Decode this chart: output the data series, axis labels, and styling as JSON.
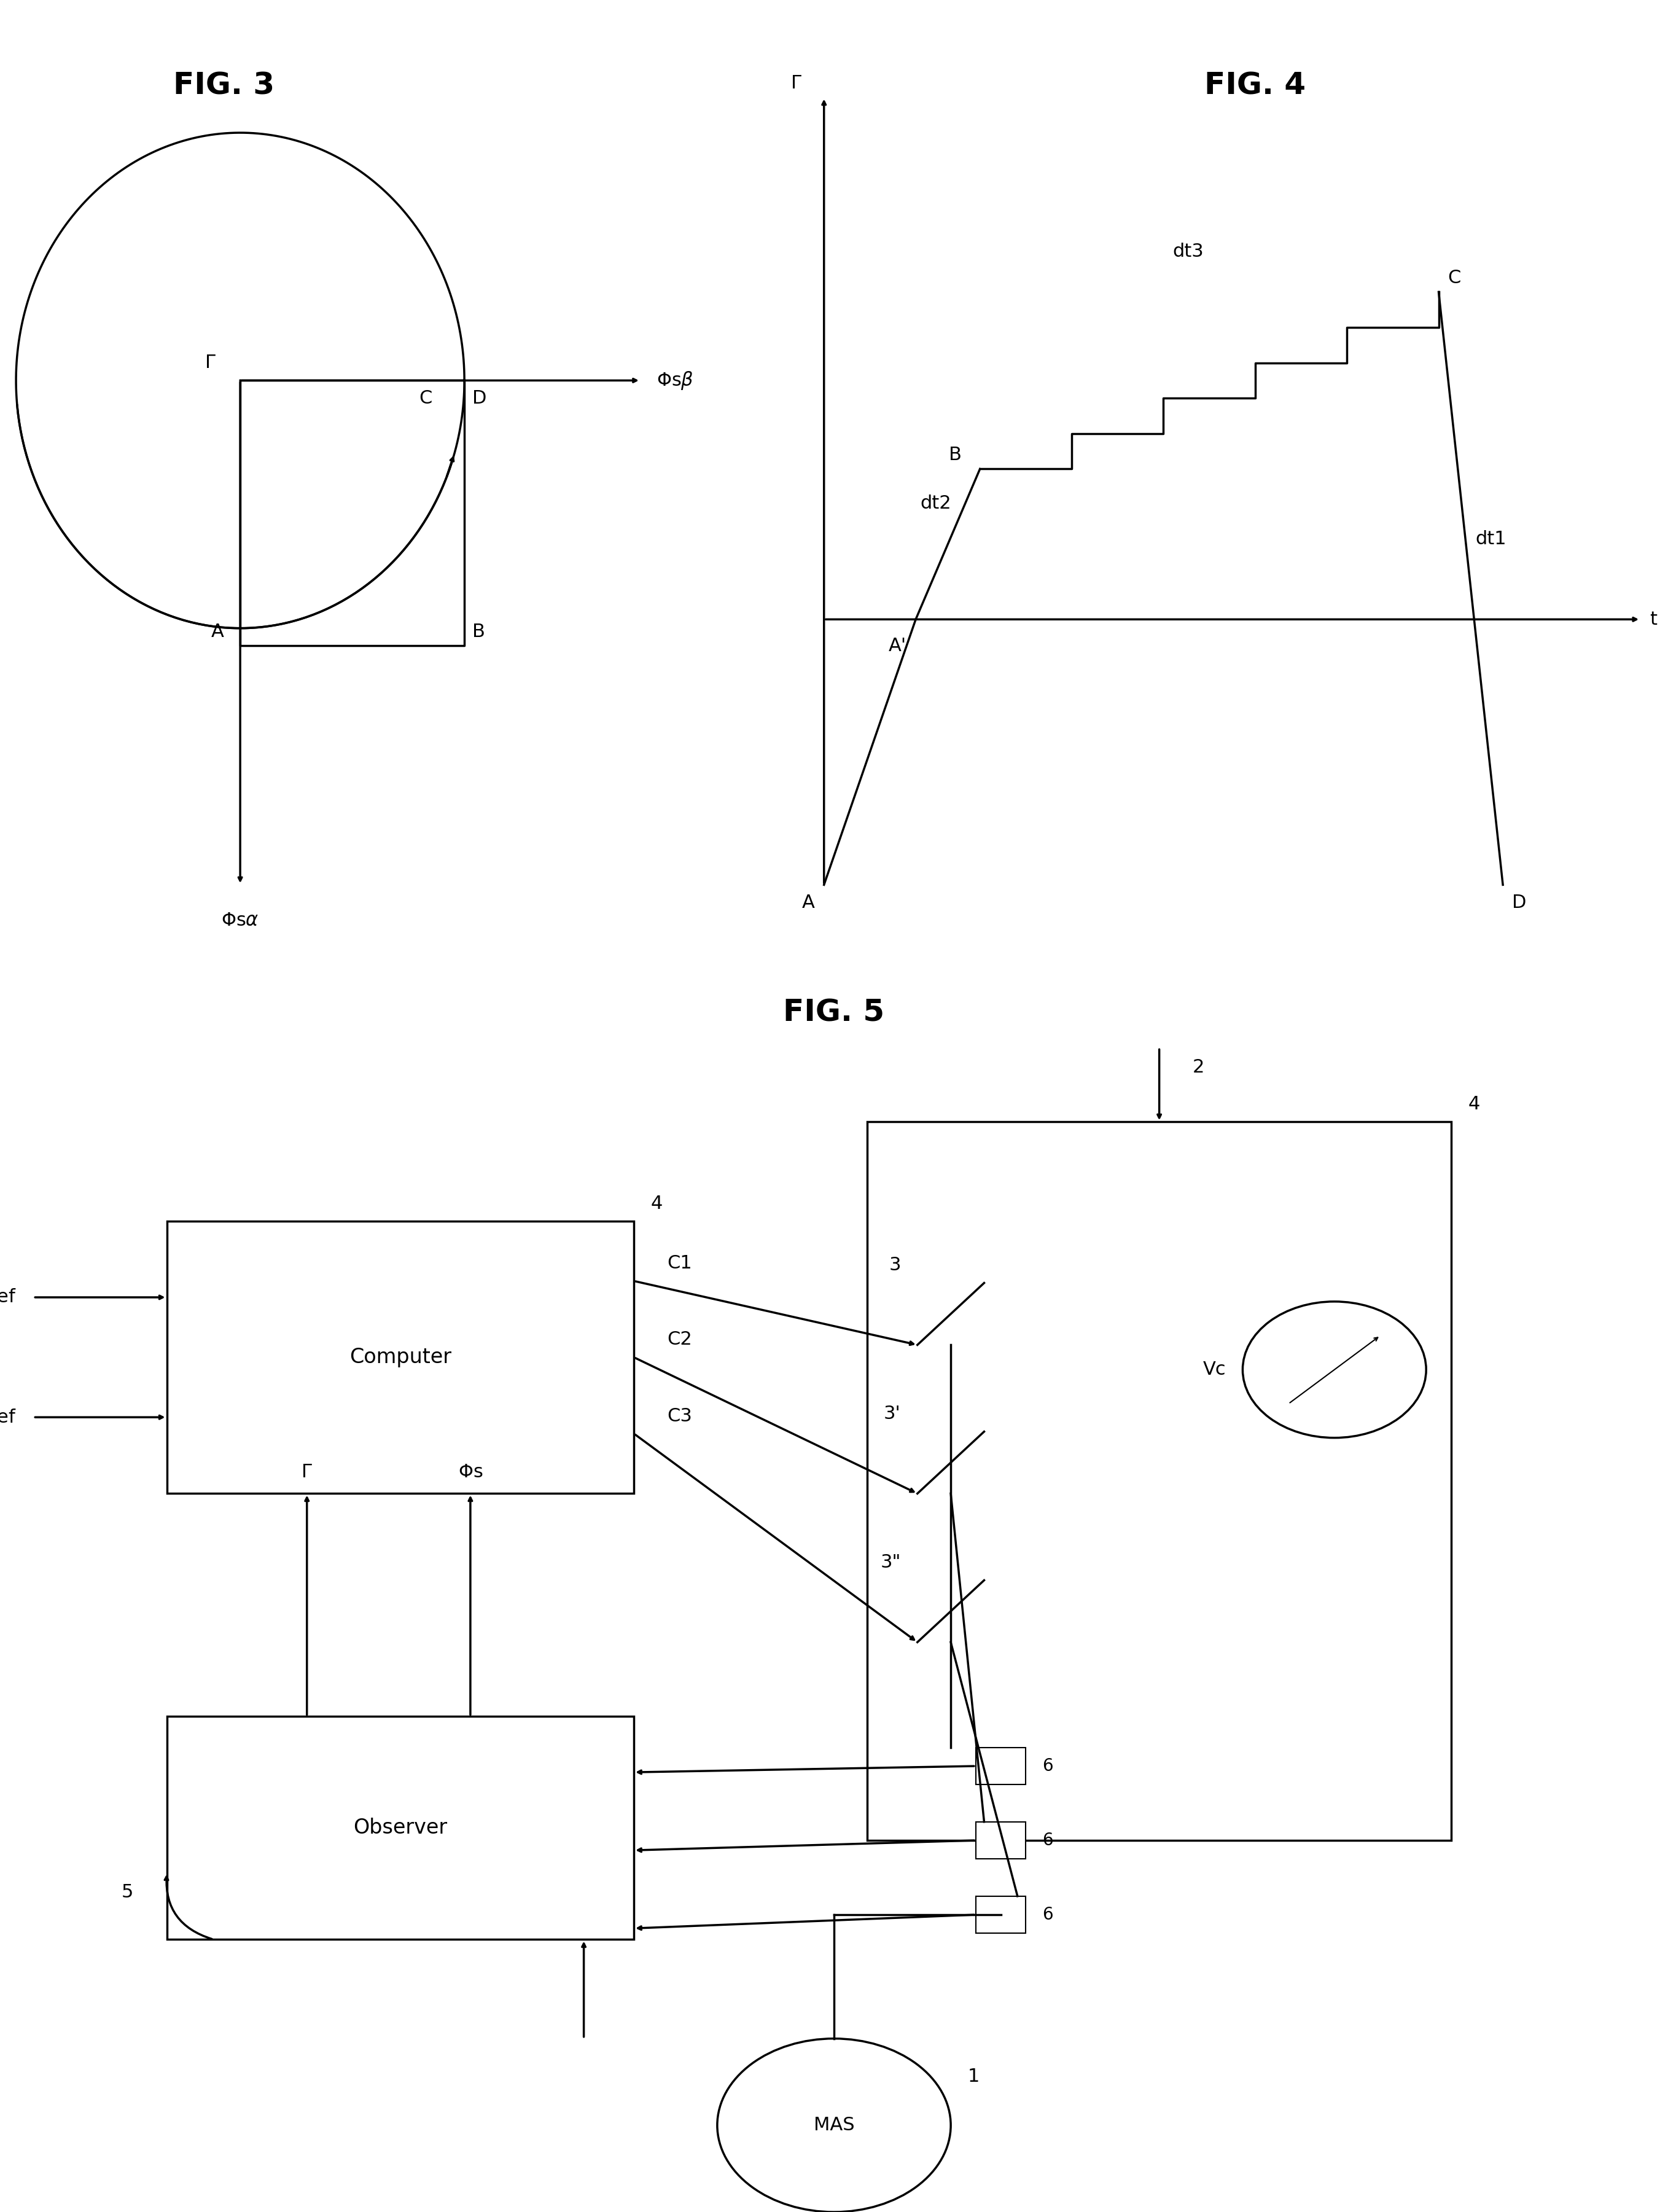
{
  "fig3_title": "FIG. 3",
  "fig4_title": "FIG. 4",
  "fig5_title": "FIG. 5",
  "bg_color": "#ffffff",
  "line_color": "#000000",
  "font_size_title": 36,
  "font_size_label": 22,
  "font_size_small": 18
}
